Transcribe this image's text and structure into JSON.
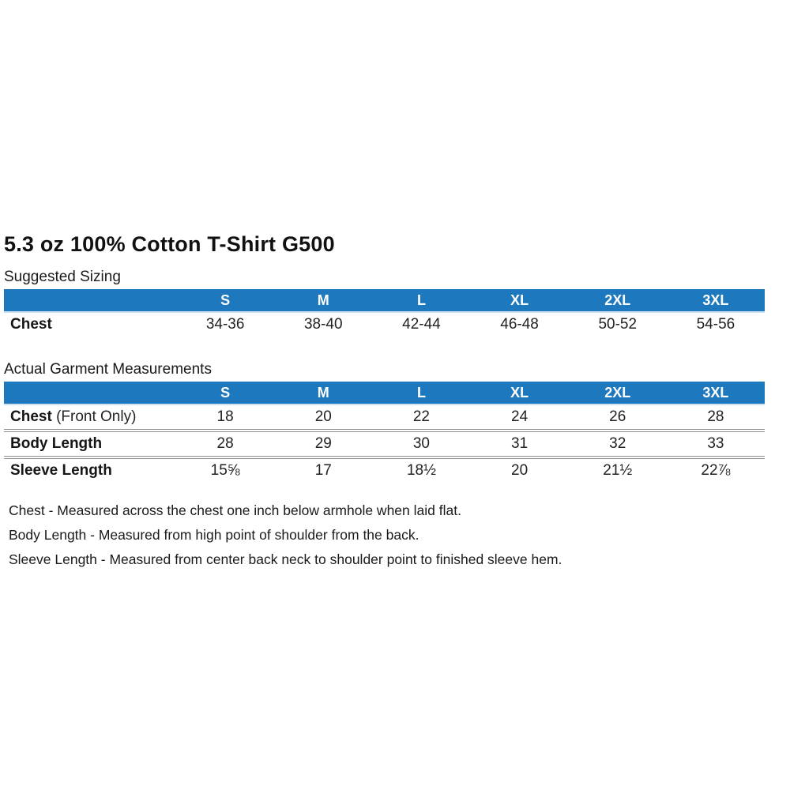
{
  "page": {
    "title": "5.3 oz 100% Cotton T-Shirt G500"
  },
  "colors": {
    "table_header_bg": "#1E78BE",
    "table_header_text": "#ffffff",
    "row_divider": "#8f8f8f",
    "body_text": "#1a1a1a"
  },
  "suggested_sizing": {
    "label": "Suggested Sizing",
    "columns": [
      "S",
      "M",
      "L",
      "XL",
      "2XL",
      "3XL"
    ],
    "rows": [
      {
        "label": "Chest",
        "label_suffix": "",
        "values": [
          "34-36",
          "38-40",
          "42-44",
          "46-48",
          "50-52",
          "54-56"
        ]
      }
    ]
  },
  "actual_measurements": {
    "label": "Actual Garment Measurements",
    "columns": [
      "S",
      "M",
      "L",
      "XL",
      "2XL",
      "3XL"
    ],
    "rows": [
      {
        "label": "Chest",
        "label_suffix": " (Front Only)",
        "values": [
          "18",
          "20",
          "22",
          "24",
          "26",
          "28"
        ]
      },
      {
        "label": "Body Length",
        "label_suffix": "",
        "values": [
          "28",
          "29",
          "30",
          "31",
          "32",
          "33"
        ]
      },
      {
        "label": "Sleeve Length",
        "label_suffix": "",
        "values": [
          "15⅝",
          "17",
          "18½",
          "20",
          "21½",
          "22⅞"
        ]
      }
    ]
  },
  "footnotes": [
    "Chest - Measured across the chest one inch below armhole when laid flat.",
    "Body Length - Measured from high point of shoulder from the back.",
    "Sleeve Length - Measured from center back neck to shoulder point to finished sleeve hem."
  ]
}
